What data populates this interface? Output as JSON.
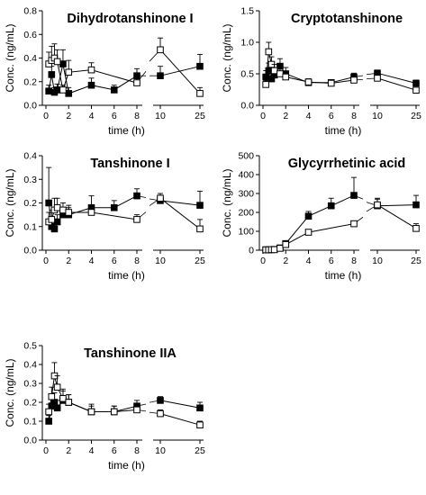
{
  "figure_colors": {
    "filled_marker": "#000000",
    "open_marker": "#ffffff",
    "line": "#000000"
  },
  "chart_data": [
    {
      "type": "line",
      "title": "Dihydrotanshinone I",
      "xlabel": "time (h)",
      "ylabel": "Conc. (ng/mL)",
      "x_ticks_left": [
        "0",
        "2",
        "4",
        "6",
        "8"
      ],
      "x_ticks_right": [
        "10",
        "25"
      ],
      "ylim": [
        0,
        0.8
      ],
      "y_ticks": [
        "0.0",
        "0.2",
        "0.4",
        "0.6",
        "0.8"
      ],
      "series": [
        {
          "marker": "filled-square",
          "x": [
            0.25,
            0.5,
            0.75,
            1,
            1.5,
            2,
            4,
            6,
            8,
            10,
            25
          ],
          "y": [
            0.12,
            0.26,
            0.11,
            0.13,
            0.35,
            0.1,
            0.17,
            0.13,
            0.25,
            0.25,
            0.33
          ],
          "err": [
            0.05,
            0.07,
            0.04,
            0.05,
            0.12,
            0.05,
            0.06,
            0.04,
            0.06,
            0.08,
            0.1
          ]
        },
        {
          "marker": "open-square",
          "x": [
            0.25,
            0.5,
            0.75,
            1,
            1.5,
            2,
            4,
            8,
            10,
            25
          ],
          "y": [
            0.35,
            0.38,
            0.4,
            0.37,
            0.13,
            0.28,
            0.3,
            0.19,
            0.47,
            0.1
          ],
          "err": [
            0.1,
            0.12,
            0.12,
            0.1,
            0.04,
            0.1,
            0.06,
            0.04,
            0.1,
            0.05
          ]
        }
      ]
    },
    {
      "type": "line",
      "title": "Cryptotanshinone",
      "xlabel": "time (h)",
      "ylabel": "Conc. (ng/mL)",
      "x_ticks_left": [
        "0",
        "2",
        "4",
        "6",
        "8"
      ],
      "x_ticks_right": [
        "10",
        "25"
      ],
      "ylim": [
        0,
        1.5
      ],
      "y_ticks": [
        "0.0",
        "0.5",
        "1.0",
        "1.5"
      ],
      "series": [
        {
          "marker": "filled-square",
          "x": [
            0.25,
            0.5,
            0.75,
            1,
            1.5,
            2,
            4,
            6,
            8,
            10,
            25
          ],
          "y": [
            0.45,
            0.55,
            0.42,
            0.48,
            0.62,
            0.5,
            0.36,
            0.36,
            0.45,
            0.51,
            0.35
          ],
          "err": [
            0.1,
            0.12,
            0.08,
            0.1,
            0.12,
            0.1,
            0.05,
            0.04,
            0.06,
            0.05,
            0.05
          ]
        },
        {
          "marker": "open-square",
          "x": [
            0.25,
            0.5,
            0.75,
            1,
            1.5,
            2,
            4,
            6,
            8,
            10,
            25
          ],
          "y": [
            0.33,
            0.85,
            0.65,
            0.55,
            0.5,
            0.45,
            0.37,
            0.35,
            0.4,
            0.43,
            0.24
          ],
          "err": [
            0.06,
            0.15,
            0.12,
            0.1,
            0.08,
            0.06,
            0.05,
            0.04,
            0.05,
            0.05,
            0.04
          ]
        }
      ]
    },
    {
      "type": "line",
      "title": "Tanshinone I",
      "xlabel": "time (h)",
      "ylabel": "Conc. (ng/mL)",
      "x_ticks_left": [
        "0",
        "2",
        "4",
        "6",
        "8"
      ],
      "x_ticks_right": [
        "10",
        "25"
      ],
      "ylim": [
        0,
        0.4
      ],
      "y_ticks": [
        "0.0",
        "0.1",
        "0.2",
        "0.3",
        "0.4"
      ],
      "series": [
        {
          "marker": "filled-square",
          "x": [
            0.25,
            0.5,
            0.75,
            1,
            1.5,
            2,
            4,
            6,
            8,
            10,
            25
          ],
          "y": [
            0.2,
            0.1,
            0.09,
            0.12,
            0.15,
            0.15,
            0.18,
            0.18,
            0.23,
            0.21,
            0.19
          ],
          "err": [
            0.15,
            0.03,
            0.02,
            0.03,
            0.03,
            0.03,
            0.05,
            0.03,
            0.03,
            0.02,
            0.06
          ]
        },
        {
          "marker": "open-square",
          "x": [
            0.25,
            0.5,
            0.75,
            1,
            1.5,
            2,
            4,
            8,
            10,
            25
          ],
          "y": [
            0.12,
            0.13,
            0.17,
            0.18,
            0.17,
            0.16,
            0.16,
            0.13,
            0.22,
            0.09
          ],
          "err": [
            0.04,
            0.04,
            0.05,
            0.04,
            0.03,
            0.03,
            0.02,
            0.02,
            0.02,
            0.04
          ]
        }
      ]
    },
    {
      "type": "line",
      "title": "Glycyrrhetinic acid",
      "xlabel": "time (h)",
      "ylabel": "Conc. (ng/mL)",
      "x_ticks_left": [
        "0",
        "2",
        "4",
        "6",
        "8"
      ],
      "x_ticks_right": [
        "10",
        "25"
      ],
      "ylim": [
        0,
        500
      ],
      "y_ticks": [
        "0",
        "100",
        "200",
        "300",
        "400",
        "500"
      ],
      "series": [
        {
          "marker": "filled-square",
          "x": [
            0.25,
            0.5,
            0.75,
            1,
            1.5,
            2,
            4,
            6,
            8,
            10,
            25
          ],
          "y": [
            2,
            2,
            3,
            4,
            12,
            35,
            180,
            235,
            290,
            235,
            240
          ],
          "err": [
            1,
            1,
            2,
            2,
            5,
            10,
            25,
            40,
            95,
            35,
            50
          ]
        },
        {
          "marker": "open-square",
          "x": [
            0.25,
            0.5,
            0.75,
            1,
            1.5,
            2,
            4,
            8,
            10,
            25
          ],
          "y": [
            2,
            2,
            3,
            3,
            10,
            30,
            95,
            140,
            240,
            115
          ],
          "err": [
            1,
            1,
            1,
            2,
            4,
            8,
            10,
            15,
            35,
            25
          ]
        }
      ]
    },
    {
      "type": "line",
      "title": "Tanshinone IIA",
      "xlabel": "time (h)",
      "ylabel": "Conc. (ng/mL)",
      "x_ticks_left": [
        "0",
        "2",
        "4",
        "6",
        "8"
      ],
      "x_ticks_right": [
        "10",
        "25"
      ],
      "ylim": [
        0,
        0.5
      ],
      "y_ticks": [
        "0.0",
        "0.1",
        "0.2",
        "0.3",
        "0.4",
        "0.5"
      ],
      "series": [
        {
          "marker": "filled-square",
          "x": [
            0.25,
            0.5,
            0.75,
            1,
            1.5,
            2,
            4,
            6,
            8,
            10,
            25
          ],
          "y": [
            0.1,
            0.18,
            0.2,
            0.17,
            0.21,
            0.2,
            0.15,
            0.15,
            0.18,
            0.21,
            0.17
          ],
          "err": [
            0.03,
            0.05,
            0.05,
            0.04,
            0.05,
            0.04,
            0.03,
            0.03,
            0.03,
            0.02,
            0.03
          ]
        },
        {
          "marker": "open-square",
          "x": [
            0.25,
            0.5,
            0.75,
            1,
            1.5,
            2,
            4,
            6,
            8,
            10,
            25
          ],
          "y": [
            0.15,
            0.23,
            0.34,
            0.28,
            0.22,
            0.2,
            0.15,
            0.15,
            0.16,
            0.14,
            0.08
          ],
          "err": [
            0.04,
            0.05,
            0.07,
            0.06,
            0.05,
            0.04,
            0.04,
            0.03,
            0.03,
            0.02,
            0.02
          ]
        }
      ]
    }
  ]
}
